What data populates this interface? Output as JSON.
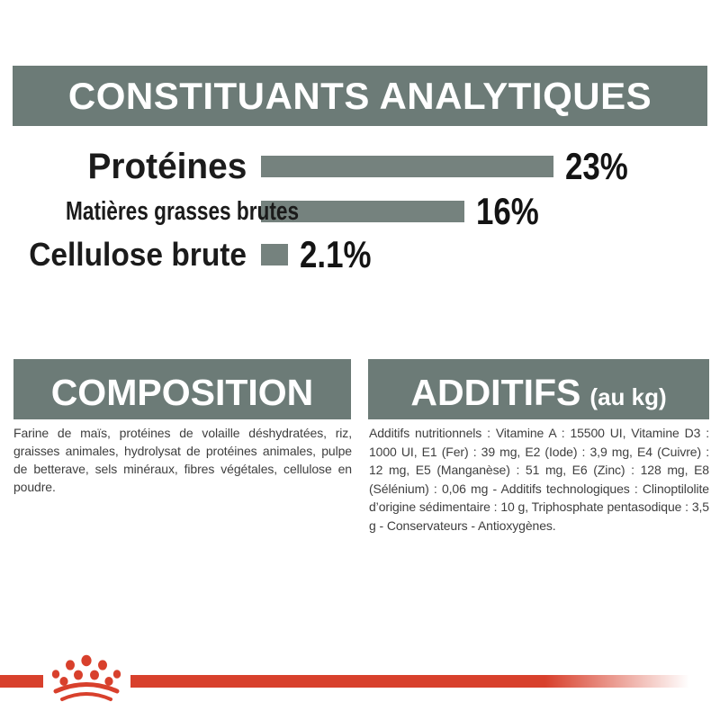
{
  "header": {
    "title": "CONSTITUANTS ANALYTIQUES"
  },
  "chart_data": {
    "type": "bar",
    "orientation": "horizontal",
    "categories": [
      "Protéines",
      "Matières grasses brutes",
      "Cellulose brute"
    ],
    "values": [
      23,
      16,
      2.1
    ],
    "value_labels": [
      "23%",
      "16%",
      "2.1%"
    ],
    "unit": "%",
    "xlim": [
      0,
      23
    ],
    "bar_color": "#75827e",
    "grid": "off",
    "legend": "none",
    "title": "CONSTITUANTS ANALYTIQUES"
  },
  "composition": {
    "title": "COMPOSITION",
    "body": "Farine de maïs, protéines de volaille déshydratées, riz, graisses animales, hydrolysat de protéines animales, pulpe de betterave, sels minéraux, fibres végétales, cellulose en poudre."
  },
  "additifs": {
    "title": "ADDITIFS",
    "subtitle": "(au kg)",
    "body": "Additifs nutritionnels : Vitamine A : 15500 UI, Vitamine D3 : 1000 UI, E1 (Fer) : 39 mg, E2 (Iode) : 3,9 mg, E4 (Cuivre) : 12 mg, E5 (Manganèse) : 51 mg, E6 (Zinc) : 128 mg, E8 (Sélénium) : 0,06 mg - Additifs technologiques : Clinoptilolite d’origine sédimentaire : 10 g, Triphosphate pentasodique : 3,5 g - Conservateurs - Antioxygènes."
  },
  "footer": {
    "logo": "royal-canin-crown"
  },
  "colors": {
    "band_sage": "#6c7b77",
    "bar_sage": "#75827e",
    "accent_red": "#d8402c",
    "text_dark": "#1b1b1b",
    "text_body": "#3e3e3e"
  }
}
